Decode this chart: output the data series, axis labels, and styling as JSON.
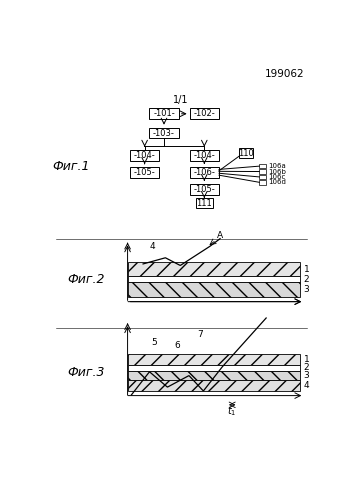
{
  "title_number": "199062",
  "sheet_label": "1/1",
  "fig1_label": "Фиг.1",
  "fig2_label": "Фиг.2",
  "fig3_label": "Фиг.3",
  "b101": "-101-",
  "b102": "-102-",
  "b103": "-103-",
  "b104": "-104-",
  "b105": "-105-",
  "b106": "-106-",
  "b106a": "106a",
  "b106b": "106b",
  "b106c": "106c",
  "b106d": "106d",
  "b110": "110",
  "b111": "111",
  "bg_color": "#ffffff"
}
